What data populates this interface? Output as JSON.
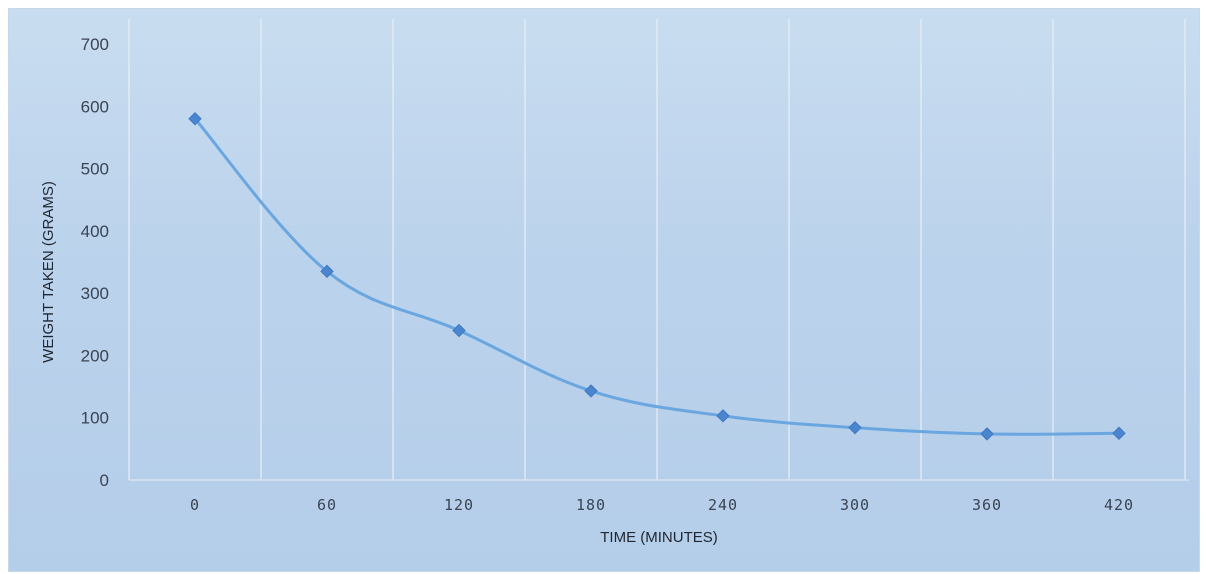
{
  "chart_data": {
    "type": "line",
    "title": "",
    "xlabel": "TIME (MINUTES)",
    "ylabel": "WEIGHT TAKEN (GRAMS)",
    "x": [
      0,
      60,
      120,
      180,
      240,
      300,
      360,
      420
    ],
    "series": [
      {
        "name": "",
        "values": [
          580,
          335,
          240,
          143,
          103,
          84,
          74,
          75
        ]
      }
    ],
    "ylim": [
      0,
      700
    ],
    "yticks": [
      0,
      100,
      200,
      300,
      400,
      500,
      600,
      700
    ],
    "grid": "vertical",
    "smooth": true,
    "colors": {
      "line": "#6aa6e0",
      "marker": "#4a86cf",
      "grid": "#e8f0f8"
    }
  }
}
